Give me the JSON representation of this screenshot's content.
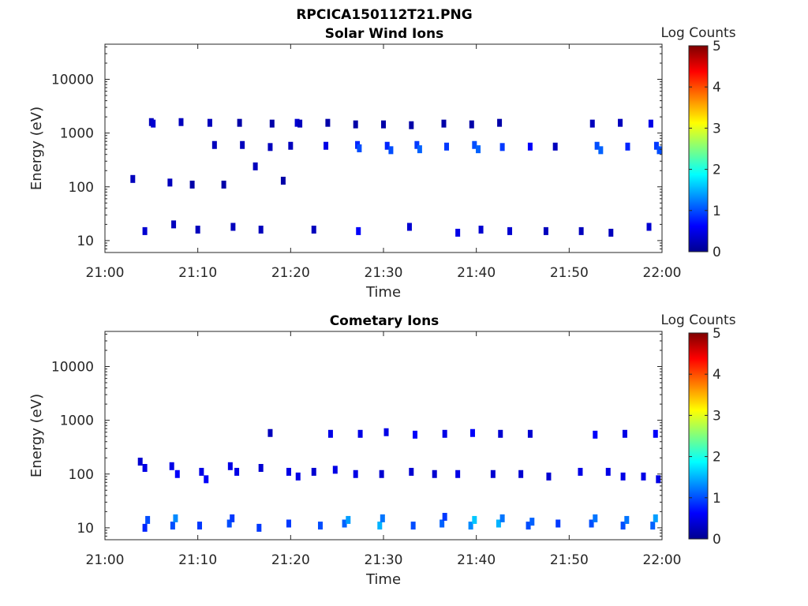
{
  "figure": {
    "title": "RPCICA150112T21.PNG"
  },
  "chart_data": [
    {
      "type": "heatmap",
      "title": "Solar Wind Ions",
      "xlabel": "Time",
      "ylabel": "Energy (eV)",
      "x_range": [
        "21:00",
        "22:00"
      ],
      "x_ticks": [
        "21:00",
        "21:10",
        "21:20",
        "21:30",
        "21:40",
        "21:50",
        "22:00"
      ],
      "y_scale": "log",
      "ylim": [
        6,
        45000
      ],
      "y_ticks": [
        {
          "value": 10,
          "label": "10"
        },
        {
          "value": 100,
          "label": "100"
        },
        {
          "value": 1000,
          "label": "1000"
        },
        {
          "value": 10000,
          "label": "10000"
        }
      ],
      "colorbar": {
        "label": "Log Counts",
        "range": [
          0,
          5
        ],
        "ticks": [
          "0",
          "1",
          "2",
          "3",
          "4",
          "5"
        ],
        "colormap": "jet"
      },
      "cells": [
        {
          "t": 5.0,
          "e": 1600,
          "v": 0.3
        },
        {
          "t": 5.2,
          "e": 1500,
          "v": 0.4
        },
        {
          "t": 8.2,
          "e": 1600,
          "v": 0.3
        },
        {
          "t": 11.3,
          "e": 1550,
          "v": 0.3
        },
        {
          "t": 14.5,
          "e": 1550,
          "v": 0.2
        },
        {
          "t": 18.0,
          "e": 1500,
          "v": 0.2
        },
        {
          "t": 20.7,
          "e": 1550,
          "v": 0.4
        },
        {
          "t": 21.0,
          "e": 1500,
          "v": 0.3
        },
        {
          "t": 24.0,
          "e": 1550,
          "v": 0.2
        },
        {
          "t": 27.0,
          "e": 1450,
          "v": 0.2
        },
        {
          "t": 30.0,
          "e": 1450,
          "v": 0.2
        },
        {
          "t": 33.0,
          "e": 1400,
          "v": 0.2
        },
        {
          "t": 36.5,
          "e": 1500,
          "v": 0.2
        },
        {
          "t": 39.5,
          "e": 1450,
          "v": 0.2
        },
        {
          "t": 42.5,
          "e": 1550,
          "v": 0.2
        },
        {
          "t": 52.5,
          "e": 1500,
          "v": 0.3
        },
        {
          "t": 55.5,
          "e": 1550,
          "v": 0.3
        },
        {
          "t": 58.8,
          "e": 1500,
          "v": 0.5
        },
        {
          "t": 27.2,
          "e": 600,
          "v": 0.8
        },
        {
          "t": 27.4,
          "e": 520,
          "v": 1.0
        },
        {
          "t": 30.4,
          "e": 580,
          "v": 0.8
        },
        {
          "t": 30.8,
          "e": 480,
          "v": 1.0
        },
        {
          "t": 33.6,
          "e": 600,
          "v": 0.9
        },
        {
          "t": 33.9,
          "e": 500,
          "v": 1.1
        },
        {
          "t": 36.8,
          "e": 560,
          "v": 0.9
        },
        {
          "t": 39.8,
          "e": 600,
          "v": 1.0
        },
        {
          "t": 40.2,
          "e": 500,
          "v": 1.1
        },
        {
          "t": 42.8,
          "e": 550,
          "v": 0.9
        },
        {
          "t": 45.8,
          "e": 560,
          "v": 0.6
        },
        {
          "t": 53.0,
          "e": 580,
          "v": 1.0
        },
        {
          "t": 53.4,
          "e": 480,
          "v": 1.1
        },
        {
          "t": 56.3,
          "e": 560,
          "v": 0.8
        },
        {
          "t": 59.4,
          "e": 580,
          "v": 0.9
        },
        {
          "t": 59.7,
          "e": 480,
          "v": 1.0
        },
        {
          "t": 11.8,
          "e": 600,
          "v": 0.3
        },
        {
          "t": 14.8,
          "e": 600,
          "v": 0.3
        },
        {
          "t": 17.8,
          "e": 550,
          "v": 0.3
        },
        {
          "t": 20.0,
          "e": 580,
          "v": 0.3
        },
        {
          "t": 23.8,
          "e": 580,
          "v": 0.5
        },
        {
          "t": 48.5,
          "e": 560,
          "v": 0.3
        },
        {
          "t": 3.0,
          "e": 140,
          "v": 0.3
        },
        {
          "t": 7.0,
          "e": 120,
          "v": 0.3
        },
        {
          "t": 9.4,
          "e": 110,
          "v": 0.2
        },
        {
          "t": 12.8,
          "e": 110,
          "v": 0.2
        },
        {
          "t": 16.2,
          "e": 240,
          "v": 0.3
        },
        {
          "t": 19.2,
          "e": 130,
          "v": 0.2
        },
        {
          "t": 4.3,
          "e": 15,
          "v": 0.4
        },
        {
          "t": 7.4,
          "e": 20,
          "v": 0.3
        },
        {
          "t": 10.0,
          "e": 16,
          "v": 0.3
        },
        {
          "t": 13.8,
          "e": 18,
          "v": 0.3
        },
        {
          "t": 16.8,
          "e": 16,
          "v": 0.3
        },
        {
          "t": 22.5,
          "e": 16,
          "v": 0.3
        },
        {
          "t": 27.3,
          "e": 15,
          "v": 0.6
        },
        {
          "t": 32.8,
          "e": 18,
          "v": 0.4
        },
        {
          "t": 38.0,
          "e": 14,
          "v": 0.5
        },
        {
          "t": 40.5,
          "e": 16,
          "v": 0.4
        },
        {
          "t": 43.6,
          "e": 15,
          "v": 0.4
        },
        {
          "t": 47.5,
          "e": 15,
          "v": 0.3
        },
        {
          "t": 51.3,
          "e": 15,
          "v": 0.3
        },
        {
          "t": 54.5,
          "e": 14,
          "v": 0.3
        },
        {
          "t": 58.6,
          "e": 18,
          "v": 0.4
        }
      ]
    },
    {
      "type": "heatmap",
      "title": "Cometary Ions",
      "xlabel": "Time",
      "ylabel": "Energy (eV)",
      "x_range": [
        "21:00",
        "22:00"
      ],
      "x_ticks": [
        "21:00",
        "21:10",
        "21:20",
        "21:30",
        "21:40",
        "21:50",
        "22:00"
      ],
      "y_scale": "log",
      "ylim": [
        6,
        45000
      ],
      "y_ticks": [
        {
          "value": 10,
          "label": "10"
        },
        {
          "value": 100,
          "label": "100"
        },
        {
          "value": 1000,
          "label": "1000"
        },
        {
          "value": 10000,
          "label": "10000"
        }
      ],
      "colorbar": {
        "label": "Log Counts",
        "range": [
          0,
          5
        ],
        "ticks": [
          "0",
          "1",
          "2",
          "3",
          "4",
          "5"
        ],
        "colormap": "jet"
      },
      "cells": [
        {
          "t": 24.3,
          "e": 560,
          "v": 0.5
        },
        {
          "t": 27.5,
          "e": 560,
          "v": 0.5
        },
        {
          "t": 30.3,
          "e": 600,
          "v": 0.5
        },
        {
          "t": 33.4,
          "e": 540,
          "v": 0.6
        },
        {
          "t": 36.6,
          "e": 560,
          "v": 0.5
        },
        {
          "t": 39.6,
          "e": 580,
          "v": 0.6
        },
        {
          "t": 42.6,
          "e": 560,
          "v": 0.4
        },
        {
          "t": 45.8,
          "e": 560,
          "v": 0.4
        },
        {
          "t": 52.8,
          "e": 540,
          "v": 0.6
        },
        {
          "t": 56.0,
          "e": 560,
          "v": 0.5
        },
        {
          "t": 59.3,
          "e": 560,
          "v": 0.6
        },
        {
          "t": 17.8,
          "e": 580,
          "v": 0.3
        },
        {
          "t": 3.8,
          "e": 170,
          "v": 0.4
        },
        {
          "t": 4.3,
          "e": 130,
          "v": 0.5
        },
        {
          "t": 7.2,
          "e": 140,
          "v": 0.5
        },
        {
          "t": 7.8,
          "e": 100,
          "v": 0.6
        },
        {
          "t": 10.4,
          "e": 110,
          "v": 0.5
        },
        {
          "t": 10.9,
          "e": 80,
          "v": 0.6
        },
        {
          "t": 13.5,
          "e": 140,
          "v": 0.5
        },
        {
          "t": 14.2,
          "e": 110,
          "v": 0.5
        },
        {
          "t": 16.8,
          "e": 130,
          "v": 0.4
        },
        {
          "t": 19.8,
          "e": 110,
          "v": 0.5
        },
        {
          "t": 20.8,
          "e": 90,
          "v": 0.5
        },
        {
          "t": 22.5,
          "e": 110,
          "v": 0.4
        },
        {
          "t": 24.8,
          "e": 120,
          "v": 0.5
        },
        {
          "t": 27.0,
          "e": 100,
          "v": 0.5
        },
        {
          "t": 29.8,
          "e": 100,
          "v": 0.4
        },
        {
          "t": 33.0,
          "e": 110,
          "v": 0.4
        },
        {
          "t": 35.5,
          "e": 100,
          "v": 0.4
        },
        {
          "t": 38.0,
          "e": 100,
          "v": 0.5
        },
        {
          "t": 41.8,
          "e": 100,
          "v": 0.4
        },
        {
          "t": 44.8,
          "e": 100,
          "v": 0.4
        },
        {
          "t": 47.8,
          "e": 90,
          "v": 0.4
        },
        {
          "t": 51.2,
          "e": 110,
          "v": 0.5
        },
        {
          "t": 54.2,
          "e": 110,
          "v": 0.5
        },
        {
          "t": 55.8,
          "e": 90,
          "v": 0.5
        },
        {
          "t": 58.0,
          "e": 90,
          "v": 0.5
        },
        {
          "t": 59.6,
          "e": 80,
          "v": 0.5
        },
        {
          "t": 4.3,
          "e": 10,
          "v": 0.8
        },
        {
          "t": 4.6,
          "e": 14,
          "v": 1.0
        },
        {
          "t": 7.3,
          "e": 11,
          "v": 1.0
        },
        {
          "t": 7.6,
          "e": 15,
          "v": 1.3
        },
        {
          "t": 10.2,
          "e": 11,
          "v": 0.9
        },
        {
          "t": 13.4,
          "e": 12,
          "v": 1.0
        },
        {
          "t": 13.7,
          "e": 15,
          "v": 0.9
        },
        {
          "t": 16.6,
          "e": 10,
          "v": 0.9
        },
        {
          "t": 19.8,
          "e": 12,
          "v": 0.9
        },
        {
          "t": 23.2,
          "e": 11,
          "v": 1.0
        },
        {
          "t": 25.8,
          "e": 12,
          "v": 1.1
        },
        {
          "t": 26.2,
          "e": 14,
          "v": 1.4
        },
        {
          "t": 29.6,
          "e": 11,
          "v": 1.5
        },
        {
          "t": 29.9,
          "e": 15,
          "v": 1.2
        },
        {
          "t": 33.2,
          "e": 11,
          "v": 1.0
        },
        {
          "t": 36.3,
          "e": 12,
          "v": 1.1
        },
        {
          "t": 36.6,
          "e": 16,
          "v": 0.9
        },
        {
          "t": 39.4,
          "e": 11,
          "v": 1.3
        },
        {
          "t": 39.8,
          "e": 14,
          "v": 1.6
        },
        {
          "t": 42.4,
          "e": 12,
          "v": 1.5
        },
        {
          "t": 42.8,
          "e": 15,
          "v": 1.2
        },
        {
          "t": 45.6,
          "e": 11,
          "v": 1.0
        },
        {
          "t": 46.0,
          "e": 13,
          "v": 1.1
        },
        {
          "t": 48.8,
          "e": 12,
          "v": 0.9
        },
        {
          "t": 52.4,
          "e": 12,
          "v": 1.0
        },
        {
          "t": 52.8,
          "e": 15,
          "v": 1.2
        },
        {
          "t": 55.8,
          "e": 11,
          "v": 1.0
        },
        {
          "t": 56.2,
          "e": 14,
          "v": 1.2
        },
        {
          "t": 59.0,
          "e": 11,
          "v": 1.1
        },
        {
          "t": 59.3,
          "e": 15,
          "v": 1.4
        }
      ]
    }
  ]
}
